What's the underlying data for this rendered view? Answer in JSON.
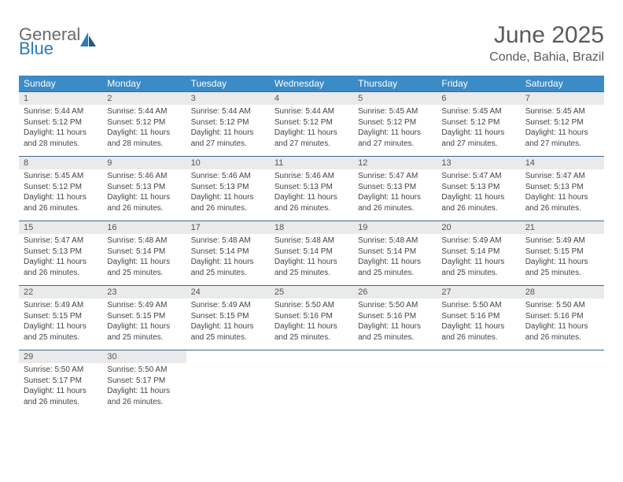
{
  "logo": {
    "word1": "General",
    "word2": "Blue"
  },
  "title": "June 2025",
  "location": "Conde, Bahia, Brazil",
  "colors": {
    "header_bg": "#3b8bc6",
    "header_text": "#ffffff",
    "daynum_bg": "#e9eaeb",
    "row_border": "#3b6a8f",
    "title_color": "#5a5a5a",
    "logo_gray": "#6a6a6a",
    "logo_blue": "#2b7bbd"
  },
  "weekdays": [
    "Sunday",
    "Monday",
    "Tuesday",
    "Wednesday",
    "Thursday",
    "Friday",
    "Saturday"
  ],
  "weeks": [
    [
      {
        "day": "1",
        "sunrise": "Sunrise: 5:44 AM",
        "sunset": "Sunset: 5:12 PM",
        "daylight1": "Daylight: 11 hours",
        "daylight2": "and 28 minutes."
      },
      {
        "day": "2",
        "sunrise": "Sunrise: 5:44 AM",
        "sunset": "Sunset: 5:12 PM",
        "daylight1": "Daylight: 11 hours",
        "daylight2": "and 28 minutes."
      },
      {
        "day": "3",
        "sunrise": "Sunrise: 5:44 AM",
        "sunset": "Sunset: 5:12 PM",
        "daylight1": "Daylight: 11 hours",
        "daylight2": "and 27 minutes."
      },
      {
        "day": "4",
        "sunrise": "Sunrise: 5:44 AM",
        "sunset": "Sunset: 5:12 PM",
        "daylight1": "Daylight: 11 hours",
        "daylight2": "and 27 minutes."
      },
      {
        "day": "5",
        "sunrise": "Sunrise: 5:45 AM",
        "sunset": "Sunset: 5:12 PM",
        "daylight1": "Daylight: 11 hours",
        "daylight2": "and 27 minutes."
      },
      {
        "day": "6",
        "sunrise": "Sunrise: 5:45 AM",
        "sunset": "Sunset: 5:12 PM",
        "daylight1": "Daylight: 11 hours",
        "daylight2": "and 27 minutes."
      },
      {
        "day": "7",
        "sunrise": "Sunrise: 5:45 AM",
        "sunset": "Sunset: 5:12 PM",
        "daylight1": "Daylight: 11 hours",
        "daylight2": "and 27 minutes."
      }
    ],
    [
      {
        "day": "8",
        "sunrise": "Sunrise: 5:45 AM",
        "sunset": "Sunset: 5:12 PM",
        "daylight1": "Daylight: 11 hours",
        "daylight2": "and 26 minutes."
      },
      {
        "day": "9",
        "sunrise": "Sunrise: 5:46 AM",
        "sunset": "Sunset: 5:13 PM",
        "daylight1": "Daylight: 11 hours",
        "daylight2": "and 26 minutes."
      },
      {
        "day": "10",
        "sunrise": "Sunrise: 5:46 AM",
        "sunset": "Sunset: 5:13 PM",
        "daylight1": "Daylight: 11 hours",
        "daylight2": "and 26 minutes."
      },
      {
        "day": "11",
        "sunrise": "Sunrise: 5:46 AM",
        "sunset": "Sunset: 5:13 PM",
        "daylight1": "Daylight: 11 hours",
        "daylight2": "and 26 minutes."
      },
      {
        "day": "12",
        "sunrise": "Sunrise: 5:47 AM",
        "sunset": "Sunset: 5:13 PM",
        "daylight1": "Daylight: 11 hours",
        "daylight2": "and 26 minutes."
      },
      {
        "day": "13",
        "sunrise": "Sunrise: 5:47 AM",
        "sunset": "Sunset: 5:13 PM",
        "daylight1": "Daylight: 11 hours",
        "daylight2": "and 26 minutes."
      },
      {
        "day": "14",
        "sunrise": "Sunrise: 5:47 AM",
        "sunset": "Sunset: 5:13 PM",
        "daylight1": "Daylight: 11 hours",
        "daylight2": "and 26 minutes."
      }
    ],
    [
      {
        "day": "15",
        "sunrise": "Sunrise: 5:47 AM",
        "sunset": "Sunset: 5:13 PM",
        "daylight1": "Daylight: 11 hours",
        "daylight2": "and 26 minutes."
      },
      {
        "day": "16",
        "sunrise": "Sunrise: 5:48 AM",
        "sunset": "Sunset: 5:14 PM",
        "daylight1": "Daylight: 11 hours",
        "daylight2": "and 25 minutes."
      },
      {
        "day": "17",
        "sunrise": "Sunrise: 5:48 AM",
        "sunset": "Sunset: 5:14 PM",
        "daylight1": "Daylight: 11 hours",
        "daylight2": "and 25 minutes."
      },
      {
        "day": "18",
        "sunrise": "Sunrise: 5:48 AM",
        "sunset": "Sunset: 5:14 PM",
        "daylight1": "Daylight: 11 hours",
        "daylight2": "and 25 minutes."
      },
      {
        "day": "19",
        "sunrise": "Sunrise: 5:48 AM",
        "sunset": "Sunset: 5:14 PM",
        "daylight1": "Daylight: 11 hours",
        "daylight2": "and 25 minutes."
      },
      {
        "day": "20",
        "sunrise": "Sunrise: 5:49 AM",
        "sunset": "Sunset: 5:14 PM",
        "daylight1": "Daylight: 11 hours",
        "daylight2": "and 25 minutes."
      },
      {
        "day": "21",
        "sunrise": "Sunrise: 5:49 AM",
        "sunset": "Sunset: 5:15 PM",
        "daylight1": "Daylight: 11 hours",
        "daylight2": "and 25 minutes."
      }
    ],
    [
      {
        "day": "22",
        "sunrise": "Sunrise: 5:49 AM",
        "sunset": "Sunset: 5:15 PM",
        "daylight1": "Daylight: 11 hours",
        "daylight2": "and 25 minutes."
      },
      {
        "day": "23",
        "sunrise": "Sunrise: 5:49 AM",
        "sunset": "Sunset: 5:15 PM",
        "daylight1": "Daylight: 11 hours",
        "daylight2": "and 25 minutes."
      },
      {
        "day": "24",
        "sunrise": "Sunrise: 5:49 AM",
        "sunset": "Sunset: 5:15 PM",
        "daylight1": "Daylight: 11 hours",
        "daylight2": "and 25 minutes."
      },
      {
        "day": "25",
        "sunrise": "Sunrise: 5:50 AM",
        "sunset": "Sunset: 5:16 PM",
        "daylight1": "Daylight: 11 hours",
        "daylight2": "and 25 minutes."
      },
      {
        "day": "26",
        "sunrise": "Sunrise: 5:50 AM",
        "sunset": "Sunset: 5:16 PM",
        "daylight1": "Daylight: 11 hours",
        "daylight2": "and 25 minutes."
      },
      {
        "day": "27",
        "sunrise": "Sunrise: 5:50 AM",
        "sunset": "Sunset: 5:16 PM",
        "daylight1": "Daylight: 11 hours",
        "daylight2": "and 26 minutes."
      },
      {
        "day": "28",
        "sunrise": "Sunrise: 5:50 AM",
        "sunset": "Sunset: 5:16 PM",
        "daylight1": "Daylight: 11 hours",
        "daylight2": "and 26 minutes."
      }
    ],
    [
      {
        "day": "29",
        "sunrise": "Sunrise: 5:50 AM",
        "sunset": "Sunset: 5:17 PM",
        "daylight1": "Daylight: 11 hours",
        "daylight2": "and 26 minutes."
      },
      {
        "day": "30",
        "sunrise": "Sunrise: 5:50 AM",
        "sunset": "Sunset: 5:17 PM",
        "daylight1": "Daylight: 11 hours",
        "daylight2": "and 26 minutes."
      },
      null,
      null,
      null,
      null,
      null
    ]
  ]
}
